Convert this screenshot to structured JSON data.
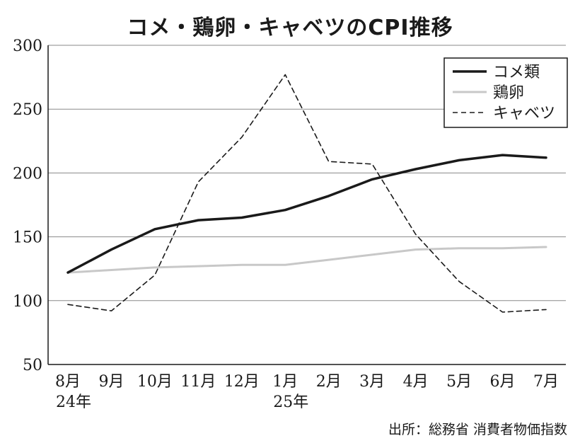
{
  "title": "コメ・鶏卵・キャベツのCPI推移",
  "source": "出所：総務省 消費者物価指数",
  "chart_data": {
    "type": "line",
    "title": "コメ・鶏卵・キャベツのCPI推移",
    "xlabel": "",
    "ylabel": "",
    "ylim": [
      50,
      300
    ],
    "yticks": [
      50,
      100,
      150,
      200,
      250,
      300
    ],
    "grid": true,
    "legend_position": "top-right",
    "categories": [
      {
        "month": "8月",
        "year": "24年"
      },
      {
        "month": "9月",
        "year": ""
      },
      {
        "month": "10月",
        "year": ""
      },
      {
        "month": "11月",
        "year": ""
      },
      {
        "month": "12月",
        "year": ""
      },
      {
        "month": "1月",
        "year": "25年"
      },
      {
        "month": "2月",
        "year": ""
      },
      {
        "month": "3月",
        "year": ""
      },
      {
        "month": "4月",
        "year": ""
      },
      {
        "month": "5月",
        "year": ""
      },
      {
        "month": "6月",
        "year": ""
      },
      {
        "month": "7月",
        "year": ""
      }
    ],
    "series": [
      {
        "name": "コメ類",
        "color": "#1a1a1a",
        "style": "solid-thick",
        "values": [
          122,
          140,
          156,
          163,
          165,
          171,
          182,
          195,
          203,
          210,
          214,
          212
        ]
      },
      {
        "name": "鶏卵",
        "color": "#c8c8c8",
        "style": "solid",
        "values": [
          122,
          124,
          126,
          127,
          128,
          128,
          132,
          136,
          140,
          141,
          141,
          142
        ]
      },
      {
        "name": "キャベツ",
        "color": "#1a1a1a",
        "style": "dashed",
        "values": [
          97,
          92,
          120,
          193,
          228,
          277,
          209,
          207,
          152,
          115,
          91,
          93
        ]
      }
    ]
  }
}
